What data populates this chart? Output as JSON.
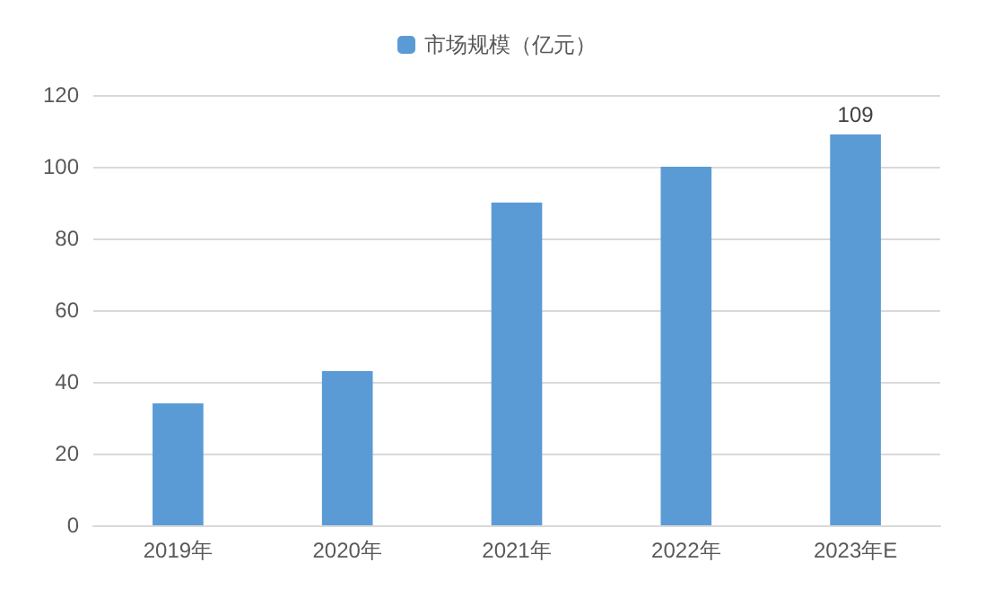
{
  "chart_data": {
    "type": "bar",
    "categories": [
      "2019年",
      "2020年",
      "2021年",
      "2022年",
      "2023年E"
    ],
    "series": [
      {
        "name": "市场规模（亿元）",
        "color": "#5b9bd5",
        "values": [
          34,
          43,
          90,
          100,
          109
        ],
        "value_labels": [
          null,
          null,
          null,
          null,
          "109"
        ]
      }
    ],
    "ylim": [
      0,
      120
    ],
    "yticks": [
      0,
      20,
      40,
      60,
      80,
      100,
      120
    ],
    "grid": "y",
    "legend": "top"
  }
}
